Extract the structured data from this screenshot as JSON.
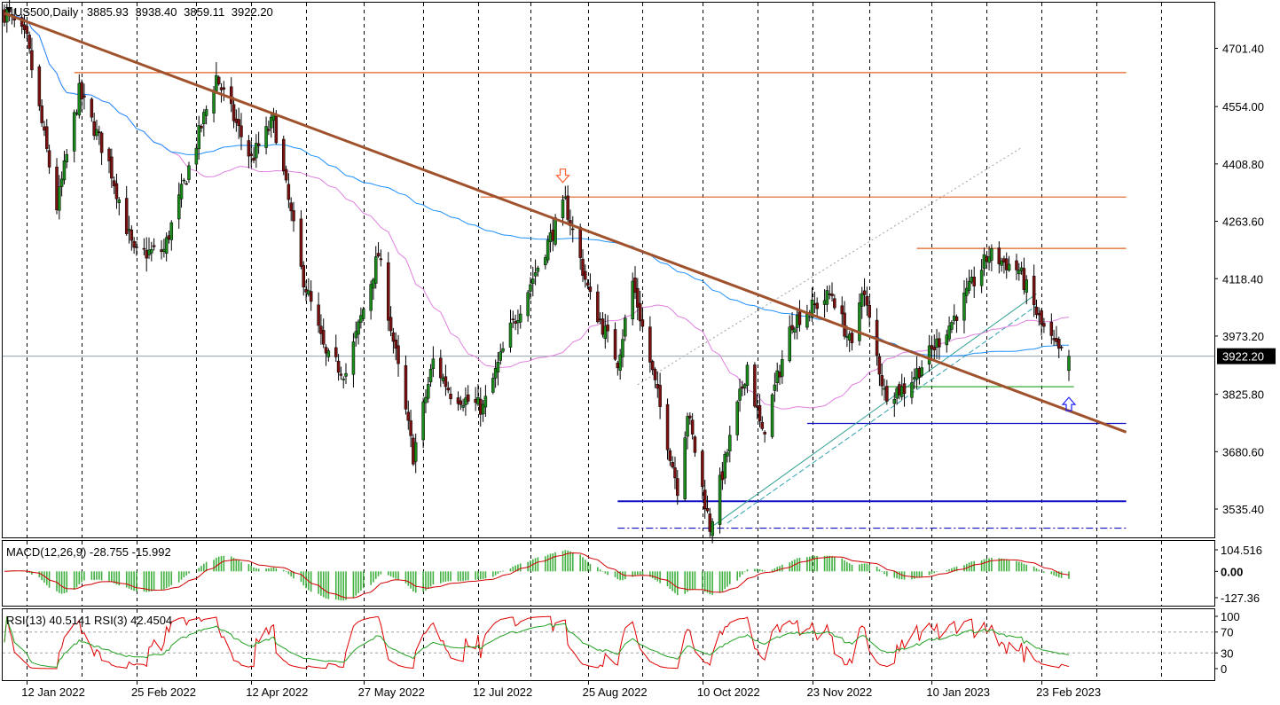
{
  "header": {
    "symbol": "US500,Daily",
    "open": "3885.93",
    "high": "3938.40",
    "low": "3859.11",
    "close": "3922.20"
  },
  "price_axis": {
    "ticks": [
      "4701.40",
      "4554.00",
      "4408.80",
      "4263.60",
      "4118.40",
      "3973.20",
      "3825.80",
      "3680.60",
      "3535.40"
    ],
    "current_price": "3922.20"
  },
  "time_axis": {
    "labels": [
      "12 Jan 2022",
      "25 Feb 2022",
      "12 Apr 2022",
      "27 May 2022",
      "12 Jul 2022",
      "25 Aug 2022",
      "10 Oct 2022",
      "23 Nov 2022",
      "10 Jan 2023",
      "23 Feb 2023"
    ]
  },
  "macd": {
    "label": "MACD(12,26,9) -28.755 -15.992",
    "ticks": [
      "104.516",
      "0.00",
      "-127.36"
    ]
  },
  "rsi": {
    "label": "RSI(13) 40.5141  RSI(3) 42.4504",
    "ticks": [
      "100",
      "70",
      "30",
      "0"
    ]
  },
  "colors": {
    "bull": "#1a8a1a",
    "bear": "#7a1010",
    "trendline": "#a0522d",
    "resistance": "#e06020",
    "support": "#1010c0",
    "ma_short": "#e080e0",
    "ma_long": "#1e90ff",
    "macd_hist": "#40b040",
    "macd_signal": "#d00000",
    "rsi_fast": "#e00000",
    "rsi_slow": "#20a020",
    "arrow_down": "#ff6030",
    "arrow_up": "#2020ff"
  },
  "chart_data": {
    "type": "candlestick",
    "instrument": "US500",
    "timeframe": "Daily",
    "x_range": [
      "2022-01-03",
      "2023-03-06"
    ],
    "ylim": [
      3490,
      4790
    ],
    "anchors": [
      [
        "2022-01-04",
        4790
      ],
      [
        "2022-01-12",
        4720
      ],
      [
        "2022-01-24",
        4300
      ],
      [
        "2022-02-02",
        4590
      ],
      [
        "2022-02-14",
        4410
      ],
      [
        "2022-02-24",
        4180
      ],
      [
        "2022-03-08",
        4190
      ],
      [
        "2022-03-29",
        4630
      ],
      [
        "2022-04-12",
        4420
      ],
      [
        "2022-04-21",
        4520
      ],
      [
        "2022-05-02",
        4140
      ],
      [
        "2022-05-12",
        3920
      ],
      [
        "2022-05-20",
        3880
      ],
      [
        "2022-06-02",
        4180
      ],
      [
        "2022-06-16",
        3670
      ],
      [
        "2022-06-24",
        3910
      ],
      [
        "2022-07-01",
        3830
      ],
      [
        "2022-07-14",
        3790
      ],
      [
        "2022-07-25",
        3990
      ],
      [
        "2022-08-16",
        4310
      ],
      [
        "2022-08-26",
        4070
      ],
      [
        "2022-09-06",
        3910
      ],
      [
        "2022-09-12",
        4110
      ],
      [
        "2022-09-30",
        3590
      ],
      [
        "2022-10-04",
        3780
      ],
      [
        "2022-10-13",
        3490
      ],
      [
        "2022-10-28",
        3900
      ],
      [
        "2022-11-03",
        3720
      ],
      [
        "2022-11-15",
        4010
      ],
      [
        "2022-12-01",
        4080
      ],
      [
        "2022-12-09",
        3940
      ],
      [
        "2022-12-13",
        4100
      ],
      [
        "2022-12-22",
        3830
      ],
      [
        "2022-12-30",
        3840
      ],
      [
        "2023-01-06",
        3900
      ],
      [
        "2023-01-18",
        4010
      ],
      [
        "2023-02-02",
        4180
      ],
      [
        "2023-02-14",
        4140
      ],
      [
        "2023-02-23",
        4000
      ],
      [
        "2023-03-02",
        3930
      ],
      [
        "2023-03-06",
        3922
      ]
    ],
    "last_bar": {
      "open": 3885.93,
      "high": 3938.4,
      "low": 3859.11,
      "close": 3922.2
    },
    "overlays": {
      "trendline": {
        "from": [
          "2022-01-03",
          4790
        ],
        "to": [
          "2023-03-29",
          3730
        ]
      },
      "horizontal_levels": [
        {
          "price": 4640,
          "from": "2022-01-31",
          "to": "2023-03-29",
          "color": "resistance"
        },
        {
          "price": 4325,
          "from": "2022-07-13",
          "to": "2023-03-29",
          "color": "resistance"
        },
        {
          "price": 4195,
          "from": "2023-01-04",
          "to": "2023-03-29",
          "color": "resistance"
        },
        {
          "price": 3845,
          "from": "2022-12-23",
          "to": "2023-03-08",
          "color": "rsi_slow"
        },
        {
          "price": 3752,
          "from": "2022-11-21",
          "to": "2023-03-29",
          "color": "support"
        },
        {
          "price": 3555,
          "from": "2022-09-06",
          "to": "2023-03-29",
          "color": "support"
        },
        {
          "price": 3487,
          "from": "2022-09-06",
          "to": "2023-03-29",
          "color": "support",
          "style": "dash-dot"
        }
      ],
      "channel": [
        {
          "from": [
            "2022-10-13",
            3487
          ],
          "to": [
            "2023-02-21",
            4080
          ],
          "style": "solid"
        },
        {
          "from": [
            "2022-10-20",
            3500
          ],
          "to": [
            "2023-02-21",
            4050
          ],
          "style": "dashed"
        },
        {
          "from": [
            "2022-09-14",
            3850
          ],
          "to": [
            "2023-02-15",
            4450
          ],
          "style": "dotted"
        }
      ],
      "arrows": [
        {
          "direction": "down",
          "at": [
            "2022-08-15",
            4380
          ]
        },
        {
          "direction": "up",
          "at": [
            "2023-03-06",
            3800
          ]
        }
      ]
    },
    "indicators": {
      "moving_averages": [
        "short",
        "long"
      ],
      "macd": {
        "fast": 12,
        "slow": 26,
        "signal": 9,
        "value": -28.755,
        "signal_value": -15.992,
        "range": [
          -127.36,
          104.516
        ]
      },
      "rsi": {
        "periods": [
          13,
          3
        ],
        "values": [
          40.5141,
          42.4504
        ],
        "levels": [
          70,
          30
        ]
      }
    }
  }
}
